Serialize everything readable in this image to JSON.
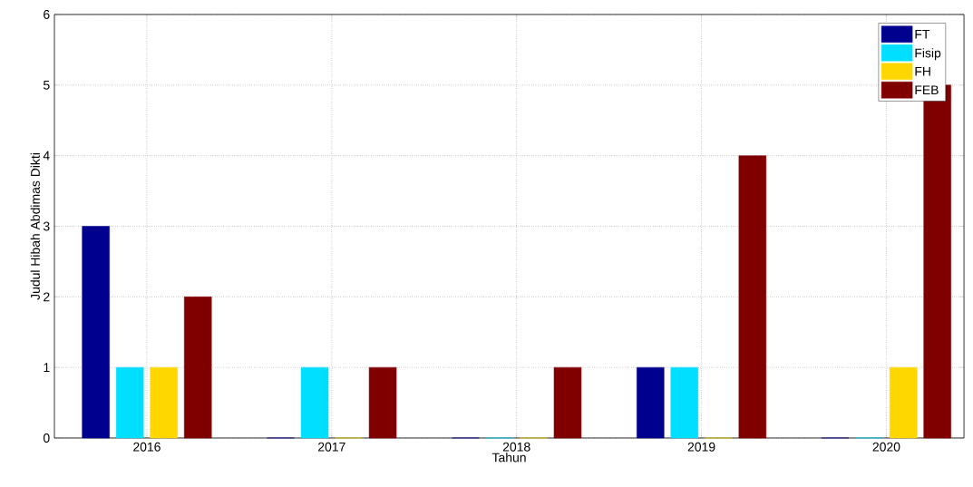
{
  "chart_data": {
    "type": "bar",
    "xlabel": "Tahun",
    "ylabel": "Judul Hibah Abdimas Dikti",
    "categories": [
      "2016",
      "2017",
      "2018",
      "2019",
      "2020"
    ],
    "series": [
      {
        "name": "FT",
        "color": "#00008f",
        "values": [
          3,
          0,
          0,
          1,
          0
        ]
      },
      {
        "name": "Fisip",
        "color": "#00dfff",
        "values": [
          1,
          1,
          0,
          1,
          0
        ]
      },
      {
        "name": "FH",
        "color": "#ffd700",
        "values": [
          1,
          0,
          0,
          0,
          1
        ]
      },
      {
        "name": "FEB",
        "color": "#800000",
        "values": [
          2,
          1,
          1,
          4,
          5
        ]
      }
    ],
    "ylim": [
      0,
      6
    ],
    "yticks": [
      0,
      1,
      2,
      3,
      4,
      5,
      6
    ],
    "grid": true,
    "legend": "top right"
  }
}
